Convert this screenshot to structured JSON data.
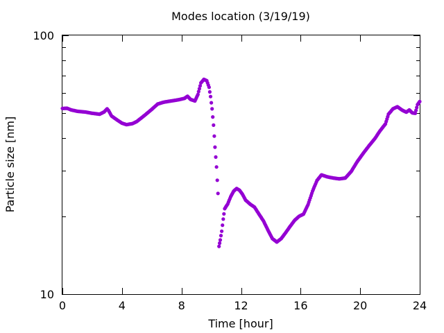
{
  "chart_data": {
    "type": "scatter",
    "title": "Modes location (3/19/19)",
    "xlabel": "Time [hour]",
    "ylabel": "Particle size [nm]",
    "xlim": [
      0,
      24
    ],
    "ylim": [
      10,
      100
    ],
    "y_scale": "log",
    "x_ticks": [
      0,
      4,
      8,
      12,
      16,
      20,
      24
    ],
    "x_tick_labels": [
      "0",
      "4",
      "8",
      "12",
      "16",
      "20",
      "24"
    ],
    "y_ticks": [
      10,
      100
    ],
    "y_tick_labels": [
      "10",
      "100"
    ],
    "y_minor_ticks": [
      20,
      30,
      40,
      50,
      60,
      70,
      80,
      90
    ],
    "grid": false,
    "marker": "star",
    "color": "#9400d3",
    "series": [
      {
        "name": "",
        "points": [
          [
            0.0,
            52.2
          ],
          [
            0.3,
            52.3
          ],
          [
            0.6,
            51.5
          ],
          [
            1.0,
            50.9
          ],
          [
            1.5,
            50.6
          ],
          [
            2.0,
            50.0
          ],
          [
            2.5,
            49.6
          ],
          [
            2.8,
            50.6
          ],
          [
            3.0,
            52.0
          ],
          [
            3.1,
            51.2
          ],
          [
            3.3,
            48.8
          ],
          [
            3.7,
            47.0
          ],
          [
            4.0,
            45.8
          ],
          [
            4.3,
            45.2
          ],
          [
            4.7,
            45.6
          ],
          [
            5.0,
            46.5
          ],
          [
            5.5,
            49.0
          ],
          [
            6.0,
            51.8
          ],
          [
            6.4,
            54.3
          ],
          [
            6.8,
            55.2
          ],
          [
            7.3,
            55.8
          ],
          [
            7.8,
            56.4
          ],
          [
            8.2,
            57.1
          ],
          [
            8.4,
            58.2
          ],
          [
            8.6,
            56.6
          ],
          [
            8.9,
            55.8
          ],
          [
            9.1,
            59.1
          ],
          [
            9.3,
            65.5
          ],
          [
            9.5,
            67.6
          ],
          [
            9.7,
            66.8
          ],
          [
            9.85,
            63.0
          ],
          [
            9.95,
            58.0
          ],
          [
            10.05,
            52.0
          ],
          [
            10.15,
            45.0
          ],
          [
            10.25,
            37.0
          ],
          [
            10.35,
            31.0
          ],
          [
            10.45,
            24.5
          ],
          [
            10.52,
            15.3
          ],
          [
            10.6,
            16.2
          ],
          [
            10.7,
            17.5
          ],
          [
            10.8,
            19.5
          ],
          [
            10.9,
            21.4
          ],
          [
            11.1,
            22.3
          ],
          [
            11.3,
            23.8
          ],
          [
            11.5,
            25.0
          ],
          [
            11.7,
            25.6
          ],
          [
            11.9,
            25.2
          ],
          [
            12.1,
            24.3
          ],
          [
            12.3,
            23.1
          ],
          [
            12.6,
            22.3
          ],
          [
            12.9,
            21.7
          ],
          [
            13.2,
            20.4
          ],
          [
            13.5,
            19.2
          ],
          [
            13.8,
            17.7
          ],
          [
            14.1,
            16.4
          ],
          [
            14.4,
            15.9
          ],
          [
            14.7,
            16.4
          ],
          [
            15.0,
            17.3
          ],
          [
            15.3,
            18.3
          ],
          [
            15.6,
            19.3
          ],
          [
            15.9,
            20.0
          ],
          [
            16.2,
            20.4
          ],
          [
            16.5,
            22.2
          ],
          [
            16.8,
            25.0
          ],
          [
            17.1,
            27.5
          ],
          [
            17.4,
            28.9
          ],
          [
            17.8,
            28.4
          ],
          [
            18.2,
            28.1
          ],
          [
            18.6,
            27.9
          ],
          [
            19.0,
            28.1
          ],
          [
            19.4,
            29.8
          ],
          [
            19.8,
            32.5
          ],
          [
            20.2,
            35.0
          ],
          [
            20.6,
            37.5
          ],
          [
            21.0,
            40.0
          ],
          [
            21.3,
            42.5
          ],
          [
            21.5,
            44.0
          ],
          [
            21.7,
            45.5
          ],
          [
            21.9,
            49.6
          ],
          [
            22.2,
            52.0
          ],
          [
            22.5,
            53.0
          ],
          [
            22.8,
            51.5
          ],
          [
            23.1,
            50.5
          ],
          [
            23.3,
            51.5
          ],
          [
            23.5,
            50.2
          ],
          [
            23.7,
            50.0
          ],
          [
            23.85,
            54.0
          ],
          [
            24.0,
            55.5
          ]
        ]
      }
    ]
  }
}
